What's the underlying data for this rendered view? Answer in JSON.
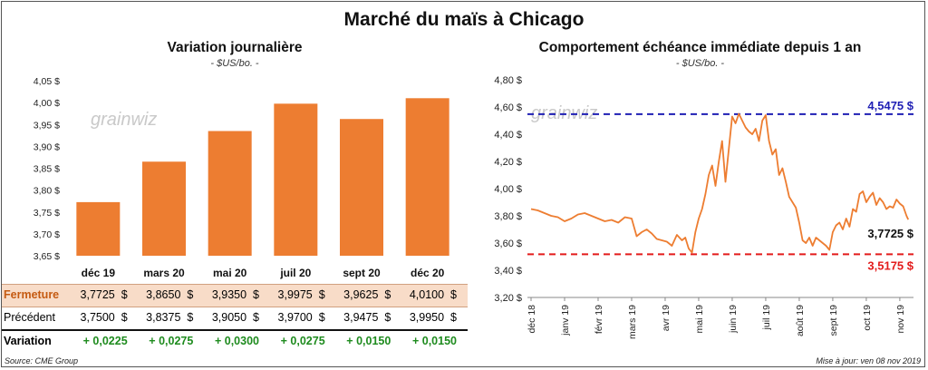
{
  "title": "Marché du maïs à Chicago",
  "left": {
    "subtitle": "Variation  journalière",
    "unit": "- $US/bo. -",
    "watermark": "grainwiz",
    "table": {
      "rows": [
        {
          "label": "Fermeture",
          "cells": [
            "3,7725  $",
            "3,8650  $",
            "3,9350  $",
            "3,9975  $",
            "3,9625  $",
            "4,0100  $"
          ]
        },
        {
          "label": "Précédent",
          "cells": [
            "3,7500  $",
            "3,8375  $",
            "3,9050  $",
            "3,9700  $",
            "3,9475  $",
            "3,9950  $"
          ]
        },
        {
          "label": "Variation",
          "cells": [
            "+ 0,0225",
            "+ 0,0275",
            "+ 0,0300",
            "+ 0,0275",
            "+ 0,0150",
            "+ 0,0150"
          ]
        }
      ]
    },
    "source": "Source: CME Group"
  },
  "right": {
    "subtitle": "Comportement  échéance immédiate  depuis 1 an",
    "unit": "- $US/bo. -",
    "watermark": "grainwiz",
    "update": "Mise à jour: ven 08 nov 2019"
  },
  "colors": {
    "bar": "#ED7D31",
    "line": "#ED7D31",
    "max_line": "#1F1FB4",
    "min_line": "#E31B1B",
    "positive": "#1E8B1E",
    "fermeture_bg": "#F8DCC8"
  },
  "chart_data": [
    {
      "type": "bar",
      "categories": [
        "déc 19",
        "mars 20",
        "mai 20",
        "juil 20",
        "sept 20",
        "déc 20"
      ],
      "values": [
        3.7725,
        3.865,
        3.935,
        3.9975,
        3.9625,
        4.01
      ],
      "ylim": [
        3.65,
        4.05
      ],
      "yticks": [
        "4,05 $",
        "4,00 $",
        "3,95 $",
        "3,90 $",
        "3,85 $",
        "3,80 $",
        "3,75 $",
        "3,70 $",
        "3,65 $"
      ],
      "ytick_values": [
        4.05,
        4.0,
        3.95,
        3.9,
        3.85,
        3.8,
        3.75,
        3.7,
        3.65
      ]
    },
    {
      "type": "line",
      "ylim": [
        3.2,
        4.8
      ],
      "yticks": [
        "4,80 $",
        "4,60 $",
        "4,40 $",
        "4,20 $",
        "4,00 $",
        "3,80 $",
        "3,60 $",
        "3,40 $",
        "3,20 $"
      ],
      "ytick_values": [
        4.8,
        4.6,
        4.4,
        4.2,
        4.0,
        3.8,
        3.6,
        3.4,
        3.2
      ],
      "xticks": [
        "déc 18",
        "janv 19",
        "févr 19",
        "mars 19",
        "avr 19",
        "mai 19",
        "juin 19",
        "juil 19",
        "août 19",
        "sept 19",
        "oct 19",
        "nov 19"
      ],
      "xtick_months": [
        0,
        1,
        2,
        3,
        4,
        5,
        6,
        7,
        8,
        9,
        10,
        11
      ],
      "max": {
        "value": 4.5475,
        "label": "4,5475 $"
      },
      "min": {
        "value": 3.5175,
        "label": "3,5175 $"
      },
      "last": {
        "value": 3.7725,
        "label": "3,7725 $"
      },
      "series": [
        {
          "x": [
            0,
            0.2,
            0.4,
            0.6,
            0.8,
            1.0,
            1.2,
            1.4,
            1.6,
            1.8,
            2.0,
            2.2,
            2.4,
            2.6,
            2.8,
            3.0,
            3.15,
            3.3,
            3.45,
            3.6,
            3.75,
            3.9,
            4.05,
            4.2,
            4.35,
            4.5,
            4.6,
            4.7,
            4.8,
            4.9,
            5.0,
            5.1,
            5.2,
            5.3,
            5.4,
            5.5,
            5.6,
            5.7,
            5.8,
            5.9,
            6.0,
            6.1,
            6.2,
            6.3,
            6.4,
            6.5,
            6.6,
            6.7,
            6.8,
            6.9,
            7.0,
            7.1,
            7.2,
            7.3,
            7.4,
            7.5,
            7.6,
            7.7,
            7.8,
            7.9,
            8.0,
            8.1,
            8.2,
            8.3,
            8.4,
            8.5,
            8.6,
            8.7,
            8.8,
            8.9,
            9.0,
            9.1,
            9.2,
            9.3,
            9.4,
            9.5,
            9.6,
            9.7,
            9.8,
            9.9,
            10.0,
            10.1,
            10.2,
            10.3,
            10.4,
            10.5,
            10.6,
            10.7,
            10.8,
            10.9,
            11.0,
            11.1,
            11.2,
            11.25
          ],
          "y": [
            3.85,
            3.84,
            3.82,
            3.8,
            3.79,
            3.76,
            3.78,
            3.81,
            3.82,
            3.8,
            3.78,
            3.76,
            3.77,
            3.75,
            3.79,
            3.78,
            3.65,
            3.68,
            3.7,
            3.67,
            3.63,
            3.62,
            3.61,
            3.58,
            3.66,
            3.62,
            3.64,
            3.56,
            3.53,
            3.68,
            3.78,
            3.85,
            3.96,
            4.1,
            4.17,
            4.02,
            4.2,
            4.35,
            4.05,
            4.29,
            4.53,
            4.48,
            4.55,
            4.5,
            4.45,
            4.42,
            4.4,
            4.44,
            4.35,
            4.5,
            4.54,
            4.35,
            4.25,
            4.29,
            4.1,
            4.15,
            4.05,
            3.94,
            3.9,
            3.86,
            3.75,
            3.62,
            3.6,
            3.64,
            3.58,
            3.64,
            3.62,
            3.6,
            3.58,
            3.55,
            3.68,
            3.73,
            3.75,
            3.7,
            3.78,
            3.72,
            3.85,
            3.83,
            3.96,
            3.98,
            3.9,
            3.94,
            3.97,
            3.88,
            3.93,
            3.9,
            3.85,
            3.87,
            3.86,
            3.92,
            3.89,
            3.87,
            3.8,
            3.7725
          ]
        }
      ]
    }
  ]
}
